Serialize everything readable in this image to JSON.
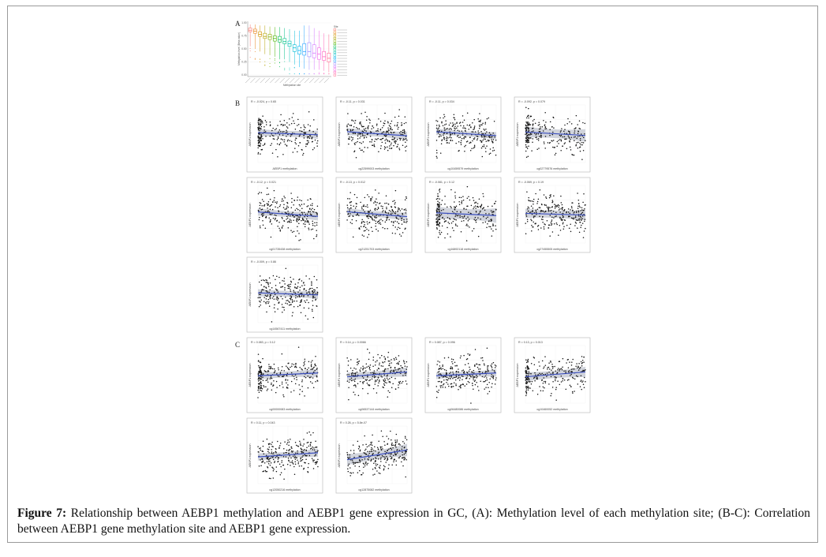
{
  "caption": {
    "label": "Figure 7:",
    "text": " Relationship between AEBP1 methylation and AEBP1 gene expression in GC, (A): Methylation level of each methylation site; (B-C): Correlation between AEBP1 gene methylation site and AEBP1 gene expression."
  },
  "panel_letters": {
    "a": "A",
    "b": "B",
    "c": "C"
  },
  "chart_data": [
    {
      "panel": "A",
      "type": "box",
      "ylabel": "Methylation level (Beta value)",
      "xlabel": "Methylation site",
      "legend_title": "Site",
      "yticks": [
        "1.00",
        "0.75",
        "0.50",
        "0.25",
        "0.00"
      ],
      "ylim": [
        0,
        1
      ],
      "legend_position": "right",
      "boxes": [
        {
          "q1": 0.83,
          "median": 0.86,
          "q3": 0.9,
          "lo": 0.55,
          "hi": 0.97,
          "color": "#f8766d"
        },
        {
          "q1": 0.8,
          "median": 0.84,
          "q3": 0.88,
          "lo": 0.5,
          "hi": 0.97,
          "color": "#e7851e"
        },
        {
          "q1": 0.74,
          "median": 0.78,
          "q3": 0.83,
          "lo": 0.45,
          "hi": 0.95,
          "color": "#d09400"
        },
        {
          "q1": 0.7,
          "median": 0.74,
          "q3": 0.8,
          "lo": 0.4,
          "hi": 0.95,
          "color": "#b2a100"
        },
        {
          "q1": 0.68,
          "median": 0.73,
          "q3": 0.78,
          "lo": 0.38,
          "hi": 0.93,
          "color": "#89ac00"
        },
        {
          "q1": 0.65,
          "median": 0.7,
          "q3": 0.75,
          "lo": 0.35,
          "hi": 0.92,
          "color": "#45b500"
        },
        {
          "q1": 0.63,
          "median": 0.68,
          "q3": 0.74,
          "lo": 0.3,
          "hi": 0.92,
          "color": "#00bc51"
        },
        {
          "q1": 0.6,
          "median": 0.64,
          "q3": 0.7,
          "lo": 0.3,
          "hi": 0.9,
          "color": "#00c087"
        },
        {
          "q1": 0.55,
          "median": 0.6,
          "q3": 0.65,
          "lo": 0.25,
          "hi": 0.88,
          "color": "#00c0b2"
        },
        {
          "q1": 0.45,
          "median": 0.52,
          "q3": 0.58,
          "lo": 0.2,
          "hi": 0.85,
          "color": "#00bcd6"
        },
        {
          "q1": 0.4,
          "median": 0.47,
          "q3": 0.55,
          "lo": 0.15,
          "hi": 0.85,
          "color": "#00b3f2"
        },
        {
          "q1": 0.38,
          "median": 0.45,
          "q3": 0.6,
          "lo": 0.12,
          "hi": 0.95,
          "color": "#29a3ff"
        },
        {
          "q1": 0.35,
          "median": 0.45,
          "q3": 0.62,
          "lo": 0.1,
          "hi": 0.95,
          "color": "#9c8dff"
        },
        {
          "q1": 0.33,
          "median": 0.42,
          "q3": 0.58,
          "lo": 0.1,
          "hi": 0.9,
          "color": "#d277ff"
        },
        {
          "q1": 0.3,
          "median": 0.4,
          "q3": 0.52,
          "lo": 0.1,
          "hi": 0.85,
          "color": "#f166e8"
        },
        {
          "q1": 0.28,
          "median": 0.35,
          "q3": 0.45,
          "lo": 0.08,
          "hi": 0.8,
          "color": "#ff65ba"
        },
        {
          "q1": 0.25,
          "median": 0.32,
          "q3": 0.42,
          "lo": 0.05,
          "hi": 0.78,
          "color": "#ff6c91"
        }
      ]
    },
    {
      "panel": "B",
      "type": "scatter",
      "ylabel": "AEBP1 expression",
      "series": [
        {
          "xlabel": "AEBP1 methylation",
          "stat": "R = -0.024, p = 0.65",
          "slope": -0.15,
          "band": 0.08
        },
        {
          "xlabel": "cg22599003 methylation",
          "stat": "R = -0.11, p = 0.031",
          "slope": -0.3,
          "band": 0.08
        },
        {
          "xlabel": "cg10459579 methylation",
          "stat": "R = -0.11, p = 0.034",
          "slope": -0.28,
          "band": 0.07
        },
        {
          "xlabel": "cg02779576 methylation",
          "stat": "R = -0.092, p = 0.079",
          "slope": -0.25,
          "band": 0.12
        },
        {
          "xlabel": "cg01735438 methylation",
          "stat": "R = -0.12, p = 0.021",
          "slope": -0.32,
          "band": 0.08
        },
        {
          "xlabel": "cg21251703 methylation",
          "stat": "R = -0.13, p = 0.012",
          "slope": -0.35,
          "band": 0.08
        },
        {
          "xlabel": "cg16892118 methylation",
          "stat": "R = -0.081, p = 0.12",
          "slope": -0.2,
          "band": 0.14
        },
        {
          "xlabel": "cg27455505 methylation",
          "stat": "R = -0.069, p = 0.19",
          "slope": -0.12,
          "band": 0.1
        },
        {
          "xlabel": "cg14567411 methylation",
          "stat": "R = -0.009, p = 0.86",
          "slope": -0.15,
          "band": 0.08
        }
      ]
    },
    {
      "panel": "C",
      "type": "scatter",
      "ylabel": "AEBP1 expression",
      "series": [
        {
          "xlabel": "cg00000083 methylation",
          "stat": "R = 0.083, p = 0.12",
          "slope": 0.2,
          "band": 0.08
        },
        {
          "xlabel": "cg06537144 methylation",
          "stat": "R = 0.14, p = 0.0066",
          "slope": 0.35,
          "band": 0.09
        },
        {
          "xlabel": "cg06480086 methylation",
          "stat": "R = 0.087, p = 0.096",
          "slope": 0.2,
          "band": 0.07
        },
        {
          "xlabel": "cg10460052 methylation",
          "stat": "R = 0.13, p = 0.013",
          "slope": 0.35,
          "band": 0.1
        },
        {
          "xlabel": "cg12050216 methylation",
          "stat": "R = 0.11, p = 0.043",
          "slope": 0.3,
          "band": 0.08
        },
        {
          "xlabel": "cg12875082 methylation",
          "stat": "R = 0.26, p = 5.8e-07",
          "slope": 0.7,
          "band": 0.12
        }
      ]
    }
  ]
}
